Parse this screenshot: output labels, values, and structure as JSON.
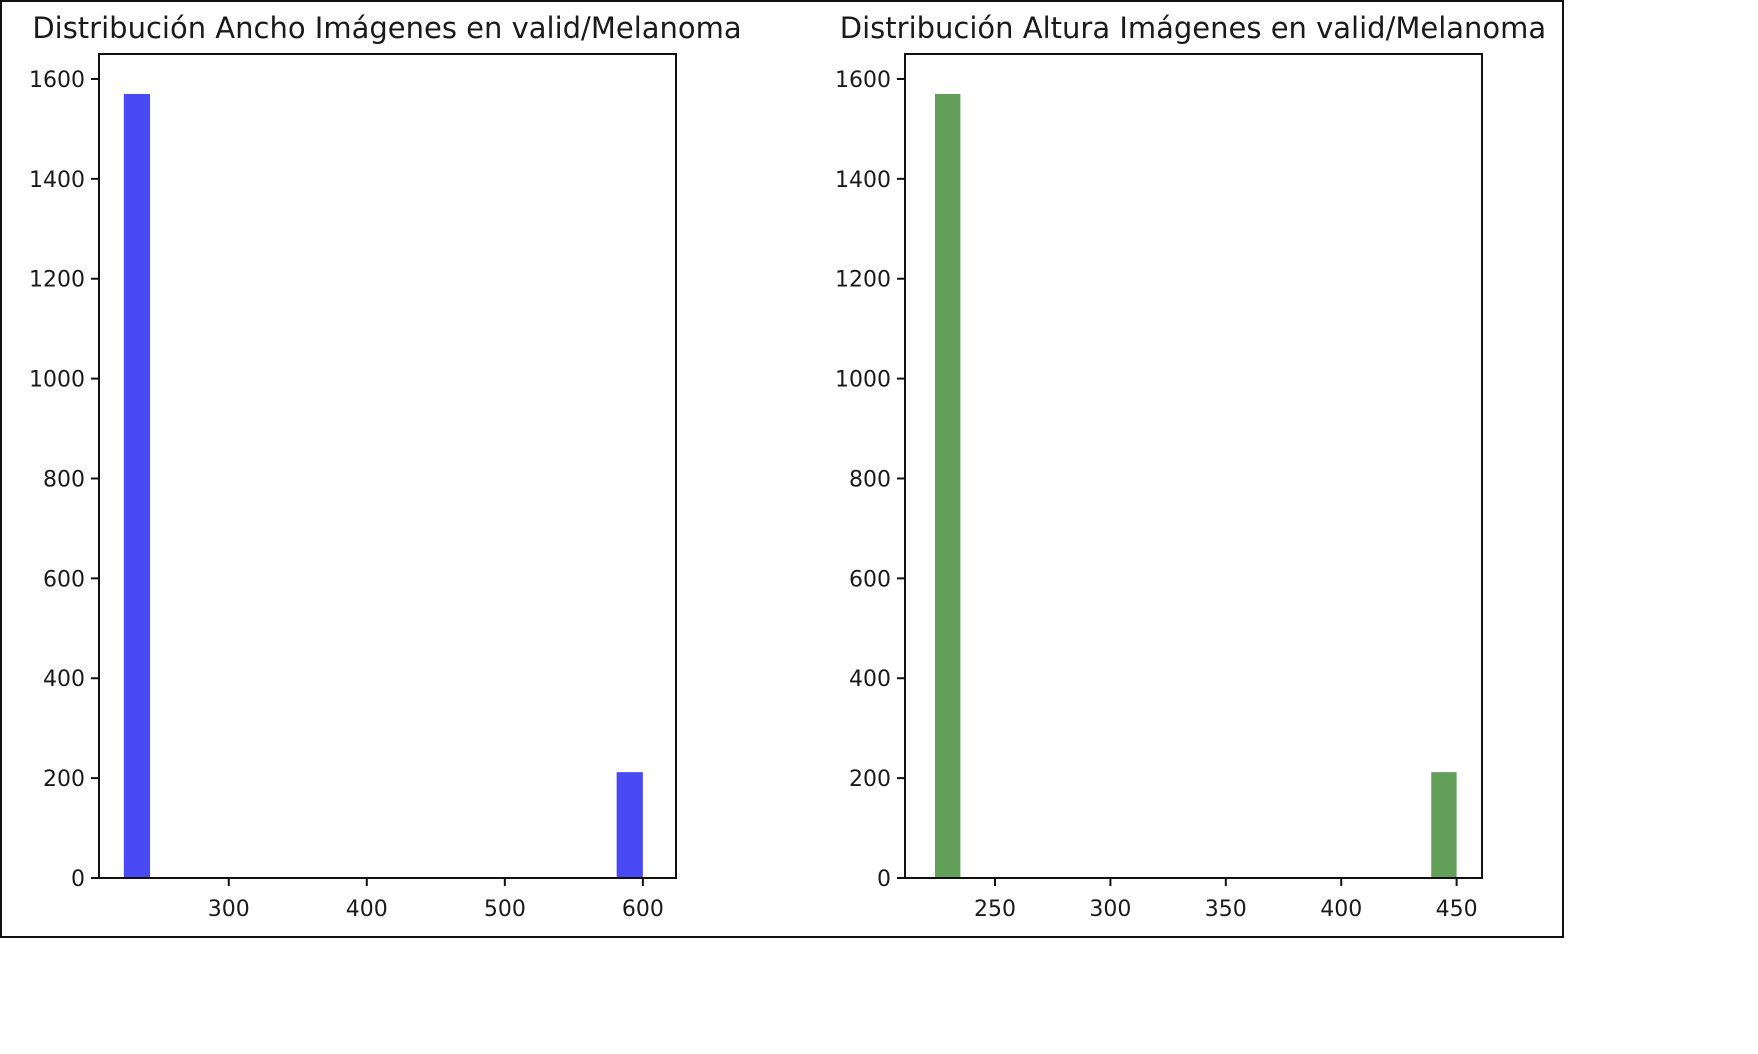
{
  "chart_data": [
    {
      "type": "bar",
      "title": "Distribución Ancho Imágenes en valid/Melanoma",
      "xlabel": "",
      "ylabel": "",
      "color": "#4a4af4",
      "xlim": [
        206,
        624
      ],
      "ylim": [
        0,
        1650
      ],
      "xticks": [
        300,
        400,
        500,
        600
      ],
      "yticks": [
        0,
        200,
        400,
        600,
        800,
        1000,
        1200,
        1400,
        1600
      ],
      "bars": [
        {
          "x0": 224,
          "x1": 243,
          "value": 1570
        },
        {
          "x0": 581,
          "x1": 600,
          "value": 212
        }
      ]
    },
    {
      "type": "bar",
      "title": "Distribución Altura Imágenes en valid/Melanoma",
      "xlabel": "",
      "ylabel": "",
      "color": "#62a05a",
      "xlim": [
        211,
        461
      ],
      "ylim": [
        0,
        1650
      ],
      "xticks": [
        250,
        300,
        350,
        400,
        450
      ],
      "yticks": [
        0,
        200,
        400,
        600,
        800,
        1000,
        1200,
        1400,
        1600
      ],
      "bars": [
        {
          "x0": 224,
          "x1": 235,
          "value": 1570
        },
        {
          "x0": 439,
          "x1": 450,
          "value": 212
        }
      ]
    }
  ]
}
